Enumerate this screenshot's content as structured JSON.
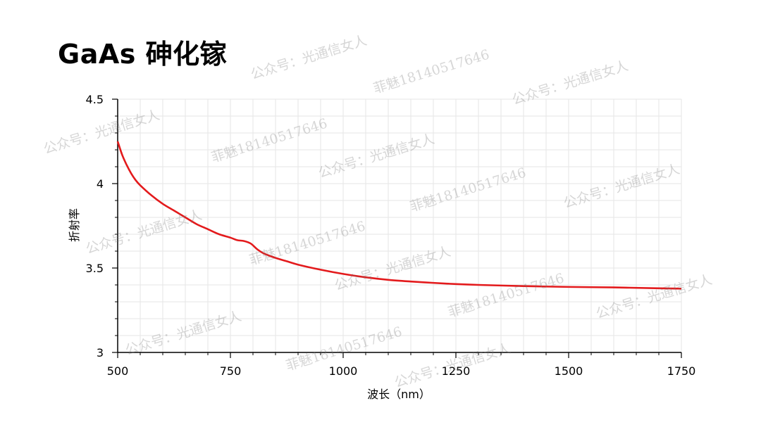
{
  "title": "GaAs 砷化镓",
  "watermarks": {
    "account": "公众号：光通信女人",
    "contact": "菲魅18140517646"
  },
  "colors": {
    "line": "#e31a1c",
    "grid": "#e6e6e6",
    "axis": "#000000"
  },
  "chart_data": {
    "type": "line",
    "title": "",
    "xlabel": "波长（nm）",
    "ylabel": "折射率",
    "xlim": [
      500,
      1750
    ],
    "ylim": [
      3,
      4.5
    ],
    "xticks": [
      500,
      750,
      1000,
      1250,
      1500,
      1750
    ],
    "xtick_labels": [
      "500",
      "750",
      "1000",
      "1250",
      "1500",
      "1750"
    ],
    "yticks": [
      3,
      3.5,
      4,
      4.5
    ],
    "ytick_labels": [
      "3",
      "3.5",
      "4",
      "4.5"
    ],
    "grid": true,
    "legend": "none",
    "series": [
      {
        "color": "#e31a1c",
        "x": [
          500,
          510,
          520,
          530,
          540,
          550,
          575,
          600,
          625,
          650,
          675,
          700,
          725,
          750,
          765,
          780,
          795,
          810,
          825,
          850,
          875,
          900,
          950,
          1000,
          1050,
          1100,
          1150,
          1200,
          1250,
          1300,
          1400,
          1500,
          1600,
          1700,
          1750
        ],
        "y": [
          4.25,
          4.17,
          4.11,
          4.06,
          4.02,
          3.99,
          3.93,
          3.88,
          3.84,
          3.8,
          3.76,
          3.73,
          3.7,
          3.68,
          3.665,
          3.66,
          3.645,
          3.61,
          3.585,
          3.56,
          3.54,
          3.52,
          3.49,
          3.465,
          3.445,
          3.43,
          3.42,
          3.412,
          3.405,
          3.4,
          3.393,
          3.388,
          3.385,
          3.38,
          3.378
        ]
      }
    ]
  }
}
